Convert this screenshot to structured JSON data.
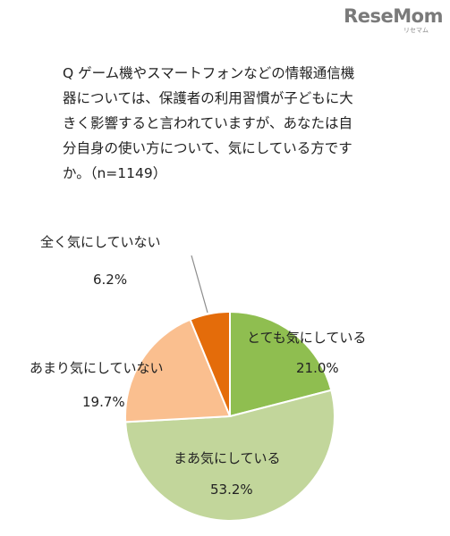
{
  "brand": {
    "name": "ReseMom",
    "sub": "リセマム"
  },
  "question": {
    "lines": [
      "Q ゲーム機やスマートフォンなどの情報通信機",
      "器については、保護者の利用習慣が子どもに大",
      "きく影響すると言われていますが、あなたは自",
      "分自身の使い方について、気にしている方です",
      "か。（n=1149）"
    ]
  },
  "chart_data": {
    "type": "pie",
    "title": "",
    "slices": [
      {
        "label": "とても気にしている",
        "value": 21.0,
        "display": "21.0%",
        "color": "#8fbe50"
      },
      {
        "label": "まあ気にしている",
        "value": 53.2,
        "display": "53.2%",
        "color": "#c2d69b"
      },
      {
        "label": "あまり気にしていない",
        "value": 19.7,
        "display": "19.7%",
        "color": "#fabf8f"
      },
      {
        "label": "全く気にしていない",
        "value": 6.2,
        "display": "6.2%",
        "color": "#e46c0a"
      }
    ]
  }
}
